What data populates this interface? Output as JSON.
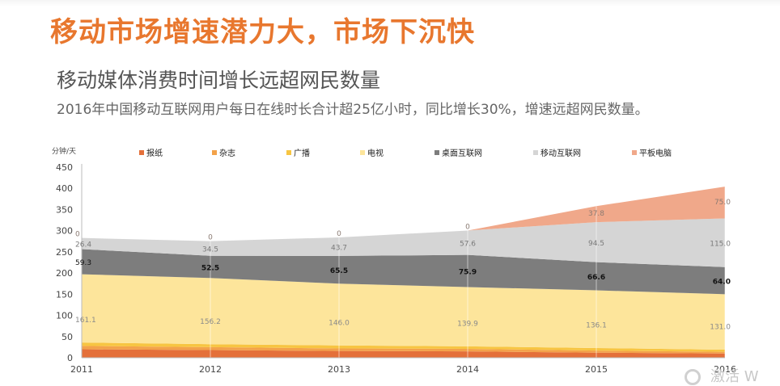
{
  "header": {
    "headline": "移动市场增速潜力大，市场下沉快",
    "subtitle": "移动媒体消费时间增长远超网民数量",
    "description": "2016年中国移动互联网用户每日在线时长合计超25亿小时，同比增长30%，增速远超网民数量。"
  },
  "watermark": {
    "text": "激活 W"
  },
  "chart_data": {
    "type": "area",
    "stacked": true,
    "unit_label": "分钟/天",
    "x": [
      "2011",
      "2012",
      "2013",
      "2014",
      "2015",
      "2016"
    ],
    "ylim": [
      0,
      450
    ],
    "yticks": [
      0,
      50,
      100,
      150,
      200,
      250,
      300,
      350,
      400,
      450
    ],
    "legend_position": "top",
    "grid": false,
    "series": [
      {
        "name": "报纸",
        "color": "#e4703a",
        "values": [
          20,
          18,
          16,
          15,
          12,
          10
        ]
      },
      {
        "name": "杂志",
        "color": "#f3a24a",
        "values": [
          8,
          7,
          6,
          6,
          5,
          4
        ]
      },
      {
        "name": "广播",
        "color": "#f7c542",
        "values": [
          8,
          7,
          7,
          6,
          6,
          5
        ]
      },
      {
        "name": "电视",
        "color": "#fde59b",
        "values": [
          161.1,
          156.2,
          146.0,
          139.9,
          136.1,
          131.0
        ],
        "labels": [
          "161.1",
          "156.2",
          "146.0",
          "139.9",
          "136.1",
          "131.0"
        ]
      },
      {
        "name": "桌面互联网",
        "color": "#7d7d7d",
        "values": [
          59.3,
          52.5,
          65.5,
          75.9,
          66.6,
          64.0
        ],
        "labels": [
          "59.3",
          "52.5",
          "65.5",
          "75.9",
          "66.6",
          "64.0"
        ]
      },
      {
        "name": "移动互联网",
        "color": "#d5d5d5",
        "values": [
          26.4,
          34.5,
          43.7,
          57.6,
          94.5,
          115.0
        ],
        "labels": [
          "26.4",
          "34.5",
          "43.7",
          "57.6",
          "94.5",
          "115.0"
        ]
      },
      {
        "name": "平板电脑",
        "color": "#f0a88a",
        "values": [
          0,
          0,
          0,
          0,
          37.8,
          75.0
        ],
        "labels": [
          "0",
          "0",
          "0",
          "0",
          "37.8",
          "75.0"
        ]
      }
    ]
  }
}
